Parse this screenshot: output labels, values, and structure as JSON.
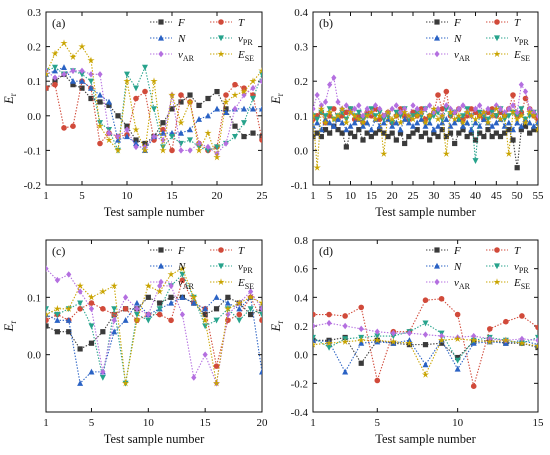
{
  "colors": {
    "F": "#3a3a3a",
    "T": "#d14a3a",
    "N": "#2a62c4",
    "vPR": "#27a38c",
    "vAR": "#b46fe0",
    "ESE": "#c9a400"
  },
  "legend_order": [
    "F",
    "T",
    "N",
    "vPR",
    "vAR",
    "ESE"
  ],
  "legend": {
    "F": {
      "main": "F",
      "sub": ""
    },
    "T": {
      "main": "T",
      "sub": ""
    },
    "N": {
      "main": "N",
      "sub": ""
    },
    "vPR": {
      "main": "v",
      "sub": "PR"
    },
    "vAR": {
      "main": "v",
      "sub": "AR"
    },
    "ESE": {
      "main": "E",
      "sub": "SE"
    }
  },
  "chart_data": [
    {
      "type": "line",
      "panel_label": "(a)",
      "xlabel": "Test sample number",
      "ylabel": {
        "main": "E",
        "sub": "r"
      },
      "xlim": [
        1,
        25
      ],
      "ylim": [
        -0.2,
        0.3
      ],
      "xticks": [
        1,
        5,
        10,
        15,
        20,
        25
      ],
      "yticks": [
        -0.2,
        -0.1,
        0.0,
        0.1,
        0.2,
        0.3
      ],
      "ytick_labels": [
        "-0.2",
        "-0.1",
        "0.0",
        "0.1",
        "0.2",
        "0.3"
      ],
      "series": [
        {
          "key": "F",
          "marker": "square",
          "values": [
            0.08,
            0.1,
            0.12,
            0.09,
            0.08,
            0.05,
            0.04,
            0.03,
            0.0,
            -0.03,
            -0.07,
            -0.08,
            -0.06,
            -0.02,
            0.02,
            0.04,
            0.06,
            0.03,
            0.05,
            0.07,
            0.02,
            -0.03,
            -0.06,
            -0.05,
            -0.06
          ]
        },
        {
          "key": "T",
          "marker": "circle",
          "values": [
            0.08,
            0.09,
            -0.035,
            -0.03,
            0.1,
            0.08,
            -0.08,
            -0.05,
            -0.06,
            -0.055,
            0.05,
            0.07,
            -0.07,
            -0.04,
            -0.1,
            0.06,
            0.04,
            -0.08,
            -0.1,
            -0.09,
            0.06,
            0.09,
            0.08,
            0.06,
            -0.07
          ]
        },
        {
          "key": "N",
          "marker": "tri-up",
          "values": [
            0.12,
            0.13,
            0.14,
            0.1,
            0.1,
            0.08,
            0.06,
            0.04,
            -0.07,
            -0.06,
            -0.08,
            -0.1,
            -0.06,
            -0.05,
            -0.05,
            -0.05,
            -0.04,
            -0.01,
            0.0,
            0.02,
            0.01,
            0.02,
            0.02,
            0.02,
            0.02
          ]
        },
        {
          "key": "vPR",
          "marker": "tri-down",
          "values": [
            0.13,
            0.14,
            0.12,
            0.13,
            0.12,
            0.1,
            -0.02,
            -0.04,
            -0.1,
            0.12,
            0.08,
            0.14,
            0.02,
            -0.09,
            -0.06,
            -0.08,
            -0.07,
            -0.09,
            -0.1,
            -0.09,
            -0.08,
            -0.06,
            -0.02,
            0.05,
            0.12
          ]
        },
        {
          "key": "vAR",
          "marker": "diamond",
          "values": [
            0.13,
            0.11,
            0.12,
            0.13,
            0.13,
            0.12,
            0.12,
            -0.05,
            -0.06,
            -0.04,
            -0.09,
            -0.09,
            -0.06,
            -0.07,
            0.06,
            -0.1,
            -0.1,
            -0.08,
            -0.09,
            -0.11,
            -0.08,
            0.02,
            0.06,
            0.08,
            0.1
          ]
        },
        {
          "key": "ESE",
          "marker": "star",
          "values": [
            0.12,
            0.18,
            0.21,
            0.17,
            0.2,
            0.16,
            -0.03,
            -0.07,
            -0.1,
            0.1,
            -0.04,
            -0.1,
            0.1,
            -0.1,
            0.06,
            -0.02,
            0.04,
            -0.1,
            -0.05,
            -0.12,
            0.04,
            0.06,
            0.07,
            0.1,
            0.13
          ]
        }
      ]
    },
    {
      "type": "line",
      "panel_label": "(b)",
      "xlabel": "Test sample number",
      "ylabel": {
        "main": "E",
        "sub": "r"
      },
      "xlim": [
        1,
        55
      ],
      "ylim": [
        -0.1,
        0.4
      ],
      "xticks": [
        1,
        5,
        10,
        15,
        20,
        25,
        30,
        35,
        40,
        45,
        50,
        55
      ],
      "yticks": [
        -0.1,
        0.0,
        0.1,
        0.2,
        0.3,
        0.4
      ],
      "ytick_labels": [
        "-0.1",
        "0.0",
        "0.1",
        "0.2",
        "0.3",
        "0.4"
      ],
      "series": [
        {
          "key": "F",
          "marker": "square",
          "values": [
            0.04,
            0.05,
            0.04,
            0.06,
            0.05,
            0.07,
            0.06,
            0.05,
            0.01,
            0.05,
            0.04,
            0.06,
            0.03,
            0.05,
            0.04,
            0.05,
            0.06,
            0.05,
            0.04,
            0.05,
            0.03,
            0.05,
            0.02,
            0.04,
            0.05,
            0.06,
            0.04,
            0.05,
            0.03,
            0.05,
            0.04,
            0.06,
            0.04,
            0.05,
            0.02,
            0.05,
            0.06,
            0.04,
            0.05,
            0.03,
            0.05,
            0.04,
            0.06,
            0.04,
            0.05,
            0.04,
            0.05,
            0.06,
            0.03,
            -0.05,
            0.06,
            0.07,
            0.05,
            0.06,
            0.06
          ]
        },
        {
          "key": "T",
          "marker": "circle",
          "values": [
            0.09,
            0.1,
            0.11,
            0.08,
            0.1,
            0.12,
            0.09,
            0.1,
            0.11,
            0.12,
            0.09,
            0.1,
            0.08,
            0.11,
            0.1,
            0.12,
            0.09,
            0.1,
            0.11,
            0.08,
            0.1,
            0.12,
            0.1,
            0.09,
            0.11,
            0.1,
            0.12,
            0.09,
            0.1,
            0.11,
            0.16,
            0.12,
            0.17,
            0.1,
            0.11,
            0.12,
            0.09,
            0.1,
            0.12,
            0.11,
            0.1,
            0.09,
            0.11,
            0.12,
            0.1,
            0.11,
            0.1,
            0.12,
            0.16,
            0.1,
            0.11,
            0.15,
            0.12,
            0.1,
            0.09
          ]
        },
        {
          "key": "N",
          "marker": "tri-up",
          "values": [
            0.07,
            0.08,
            0.06,
            0.09,
            0.08,
            0.07,
            0.09,
            0.08,
            0.06,
            0.07,
            0.08,
            0.09,
            0.07,
            0.08,
            0.06,
            0.09,
            0.07,
            0.08,
            0.09,
            0.07,
            0.08,
            0.06,
            0.09,
            0.08,
            0.07,
            0.08,
            0.09,
            0.07,
            0.08,
            0.06,
            0.07,
            0.08,
            0.09,
            0.07,
            0.08,
            0.09,
            0.07,
            0.08,
            0.06,
            0.08,
            0.07,
            0.09,
            0.08,
            0.07,
            0.08,
            0.09,
            0.07,
            0.08,
            0.06,
            0.08,
            0.07,
            0.09,
            0.08,
            0.07,
            0.08
          ]
        },
        {
          "key": "vPR",
          "marker": "tri-down",
          "values": [
            0.1,
            0.09,
            0.11,
            0.1,
            0.12,
            0.09,
            0.1,
            0.11,
            0.09,
            0.12,
            0.1,
            0.11,
            0.09,
            0.1,
            0.12,
            0.1,
            0.11,
            0.09,
            0.1,
            0.08,
            0.11,
            0.1,
            0.12,
            0.09,
            0.1,
            0.11,
            0.1,
            0.12,
            0.09,
            0.1,
            0.11,
            0.09,
            0.12,
            0.1,
            0.11,
            0.09,
            0.1,
            0.12,
            0.1,
            -0.03,
            0.11,
            0.1,
            0.09,
            0.11,
            0.1,
            0.12,
            0.09,
            0.1,
            0.11,
            0.1,
            0.12,
            0.09,
            0.1,
            0.11,
            0.1
          ]
        },
        {
          "key": "vAR",
          "marker": "diamond",
          "values": [
            0.12,
            0.16,
            0.13,
            0.14,
            0.19,
            0.21,
            0.14,
            0.12,
            0.13,
            0.11,
            0.12,
            0.13,
            0.1,
            0.12,
            0.11,
            0.13,
            0.12,
            0.1,
            0.11,
            0.12,
            0.13,
            0.11,
            0.12,
            0.1,
            0.13,
            0.12,
            0.11,
            0.12,
            0.13,
            0.11,
            0.12,
            0.1,
            0.13,
            0.12,
            0.11,
            0.12,
            0.13,
            0.11,
            0.1,
            0.12,
            0.13,
            0.11,
            0.12,
            0.1,
            0.13,
            0.12,
            0.11,
            0.12,
            0.13,
            0.11,
            0.19,
            0.17,
            0.12,
            0.11,
            0.1
          ]
        },
        {
          "key": "ESE",
          "marker": "star",
          "values": [
            0.1,
            -0.05,
            0.12,
            0.08,
            0.11,
            0.09,
            0.1,
            0.12,
            0.08,
            0.11,
            0.1,
            0.09,
            0.08,
            0.1,
            0.11,
            0.09,
            0.1,
            -0.01,
            0.11,
            0.09,
            0.1,
            0.08,
            0.11,
            0.1,
            0.09,
            0.1,
            0.11,
            0.08,
            0.1,
            0.12,
            0.09,
            0.1,
            -0.01,
            0.11,
            0.09,
            0.1,
            0.08,
            0.11,
            0.1,
            0.09,
            0.1,
            0.11,
            0.08,
            0.1,
            0.12,
            0.09,
            0.1,
            -0.01,
            0.11,
            0.09,
            0.1,
            0.08,
            0.11,
            0.1,
            0.06
          ]
        }
      ]
    },
    {
      "type": "line",
      "panel_label": "(c)",
      "xlabel": "Test sample number",
      "ylabel": {
        "main": "E",
        "sub": "r"
      },
      "xlim": [
        1,
        20
      ],
      "ylim": [
        -0.1,
        0.2
      ],
      "xticks": [
        1,
        5,
        10,
        15,
        20
      ],
      "yticks": [
        0.0,
        0.1
      ],
      "ytick_labels": [
        "0.0",
        "0.1"
      ],
      "series": [
        {
          "key": "F",
          "marker": "square",
          "values": [
            0.05,
            0.04,
            0.04,
            0.01,
            0.02,
            0.04,
            0.07,
            0.08,
            0.08,
            0.1,
            0.09,
            0.1,
            0.1,
            0.09,
            0.07,
            0.08,
            0.1,
            0.09,
            0.07,
            0.08
          ]
        },
        {
          "key": "T",
          "marker": "circle",
          "values": [
            0.06,
            0.07,
            0.06,
            0.08,
            0.09,
            0.08,
            0.07,
            0.08,
            0.06,
            0.07,
            0.07,
            0.06,
            0.13,
            0.09,
            0.08,
            -0.02,
            0.06,
            0.07,
            0.1,
            0.06
          ]
        },
        {
          "key": "N",
          "marker": "tri-up",
          "values": [
            0.07,
            0.06,
            0.06,
            -0.05,
            -0.03,
            -0.03,
            0.04,
            0.06,
            0.09,
            0.07,
            0.08,
            0.09,
            0.1,
            0.09,
            0.08,
            0.1,
            0.09,
            0.08,
            0.1,
            -0.03
          ]
        },
        {
          "key": "vPR",
          "marker": "tri-down",
          "values": [
            0.08,
            0.07,
            0.08,
            0.09,
            0.05,
            -0.04,
            0.08,
            -0.05,
            0.07,
            0.06,
            0.08,
            0.12,
            0.14,
            0.1,
            0.05,
            0.06,
            0.08,
            0.06,
            0.08,
            0.07
          ]
        },
        {
          "key": "vAR",
          "marker": "diamond",
          "values": [
            0.15,
            0.13,
            0.14,
            0.11,
            0.08,
            -0.03,
            0.06,
            0.1,
            0.08,
            0.07,
            0.12,
            0.12,
            0.07,
            -0.04,
            0.0,
            -0.05,
            0.07,
            0.09,
            0.11,
            0.08
          ]
        },
        {
          "key": "ESE",
          "marker": "star",
          "values": [
            0.07,
            0.08,
            0.08,
            0.12,
            0.1,
            0.11,
            0.12,
            -0.05,
            0.06,
            0.12,
            0.11,
            0.14,
            0.15,
            0.1,
            0.06,
            -0.05,
            0.08,
            0.09,
            0.1,
            0.09
          ]
        }
      ]
    },
    {
      "type": "line",
      "panel_label": "(d)",
      "xlabel": "Test sample number",
      "ylabel": {
        "main": "E",
        "sub": "r"
      },
      "xlim": [
        1,
        15
      ],
      "ylim": [
        -0.4,
        0.8
      ],
      "xticks": [
        1,
        5,
        10,
        15
      ],
      "yticks": [
        -0.4,
        -0.2,
        0.0,
        0.2,
        0.4,
        0.6,
        0.8
      ],
      "ytick_labels": [
        "-0.4",
        "-0.2",
        "0.0",
        "0.2",
        "0.4",
        "0.6",
        "0.8"
      ],
      "series": [
        {
          "key": "F",
          "marker": "square",
          "values": [
            0.1,
            0.1,
            0.12,
            -0.06,
            0.1,
            0.08,
            0.07,
            0.07,
            0.08,
            -0.02,
            0.09,
            0.1,
            0.08,
            0.08,
            0.05
          ]
        },
        {
          "key": "T",
          "marker": "circle",
          "values": [
            0.28,
            0.28,
            0.27,
            0.33,
            -0.18,
            0.16,
            0.16,
            0.38,
            0.39,
            0.28,
            -0.22,
            0.18,
            0.23,
            0.27,
            0.19
          ]
        },
        {
          "key": "N",
          "marker": "tri-up",
          "values": [
            0.1,
            0.09,
            -0.12,
            0.08,
            0.09,
            0.08,
            0.1,
            -0.07,
            0.1,
            -0.1,
            0.08,
            0.09,
            0.08,
            0.1,
            0.07
          ]
        },
        {
          "key": "vPR",
          "marker": "tri-down",
          "values": [
            0.12,
            0.05,
            0.11,
            0.12,
            0.13,
            0.13,
            0.16,
            0.22,
            0.15,
            -0.04,
            0.1,
            0.12,
            0.1,
            0.08,
            0.12
          ]
        },
        {
          "key": "vAR",
          "marker": "diamond",
          "values": [
            0.2,
            0.22,
            0.2,
            0.18,
            0.16,
            0.15,
            0.15,
            0.14,
            0.13,
            0.12,
            0.13,
            0.11,
            0.1,
            0.11,
            0.1
          ]
        },
        {
          "key": "ESE",
          "marker": "star",
          "values": [
            0.07,
            0.08,
            0.09,
            0.1,
            0.1,
            0.09,
            0.08,
            -0.14,
            0.1,
            0.11,
            0.1,
            0.09,
            0.1,
            0.08,
            0.06
          ]
        }
      ]
    }
  ]
}
